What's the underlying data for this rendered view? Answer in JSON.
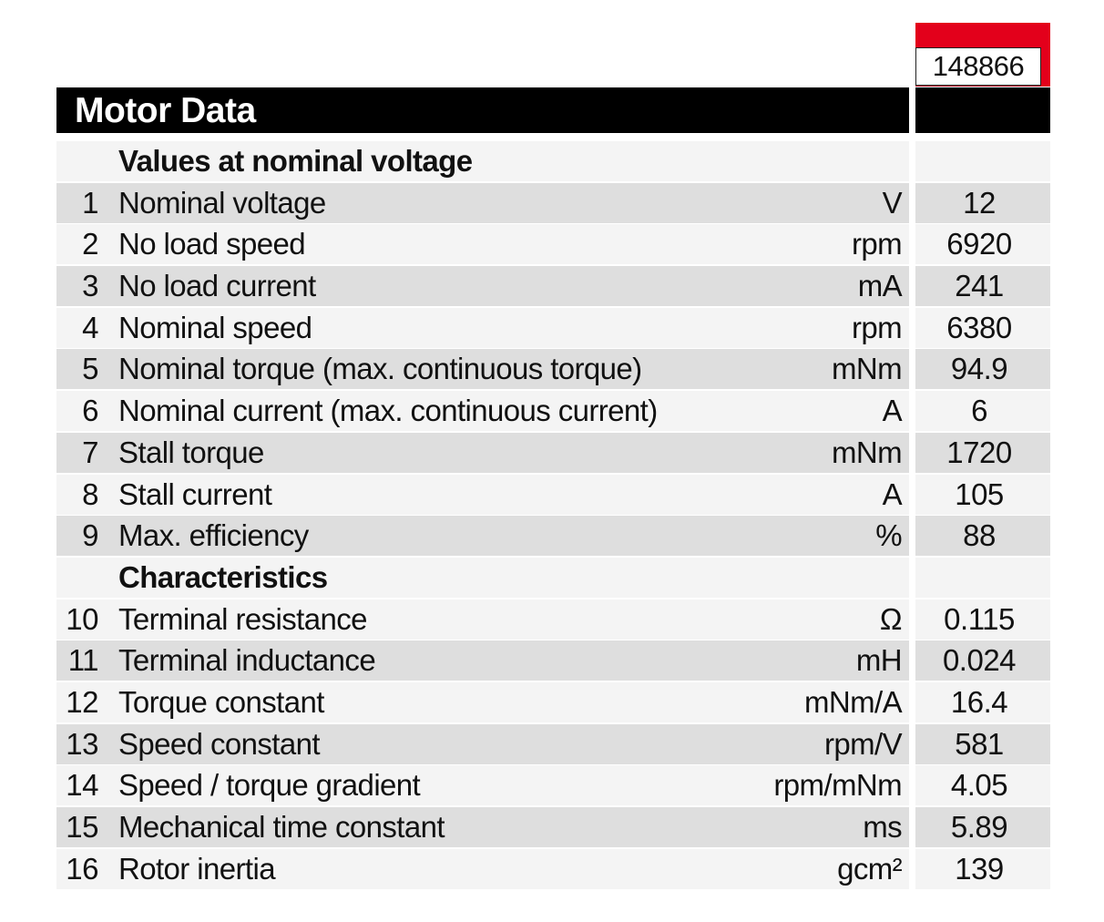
{
  "part_number": "148866",
  "title": "Motor Data",
  "rows": [
    {
      "type": "section",
      "label": "Values at nominal voltage"
    },
    {
      "type": "data",
      "num": "1",
      "label": "Nominal voltage",
      "unit": "V",
      "value": "12"
    },
    {
      "type": "data",
      "num": "2",
      "label": "No load speed",
      "unit": "rpm",
      "value": "6920"
    },
    {
      "type": "data",
      "num": "3",
      "label": "No load current",
      "unit": "mA",
      "value": "241"
    },
    {
      "type": "data",
      "num": "4",
      "label": "Nominal speed",
      "unit": "rpm",
      "value": "6380"
    },
    {
      "type": "data",
      "num": "5",
      "label": "Nominal torque (max. continuous torque)",
      "unit": "mNm",
      "value": "94.9"
    },
    {
      "type": "data",
      "num": "6",
      "label": "Nominal current (max. continuous current)",
      "unit": "A",
      "value": "6"
    },
    {
      "type": "data",
      "num": "7",
      "label": "Stall torque",
      "unit": "mNm",
      "value": "1720"
    },
    {
      "type": "data",
      "num": "8",
      "label": "Stall current",
      "unit": "A",
      "value": "105"
    },
    {
      "type": "data",
      "num": "9",
      "label": "Max. efficiency",
      "unit": "%",
      "value": "88"
    },
    {
      "type": "section",
      "label": "Characteristics"
    },
    {
      "type": "data",
      "num": "10",
      "label": "Terminal resistance",
      "unit": "Ω",
      "value": "0.115"
    },
    {
      "type": "data",
      "num": "11",
      "label": "Terminal inductance",
      "unit": "mH",
      "value": "0.024"
    },
    {
      "type": "data",
      "num": "12",
      "label": "Torque constant",
      "unit": "mNm/A",
      "value": "16.4"
    },
    {
      "type": "data",
      "num": "13",
      "label": "Speed constant",
      "unit": "rpm/V",
      "value": "581"
    },
    {
      "type": "data",
      "num": "14",
      "label": "Speed / torque gradient",
      "unit": "rpm/mNm",
      "value": "4.05"
    },
    {
      "type": "data",
      "num": "15",
      "label": "Mechanical time constant",
      "unit": "ms",
      "value": "5.89"
    },
    {
      "type": "data",
      "num": "16",
      "label": "Rotor inertia",
      "unit": "gcm²",
      "value": "139"
    }
  ]
}
